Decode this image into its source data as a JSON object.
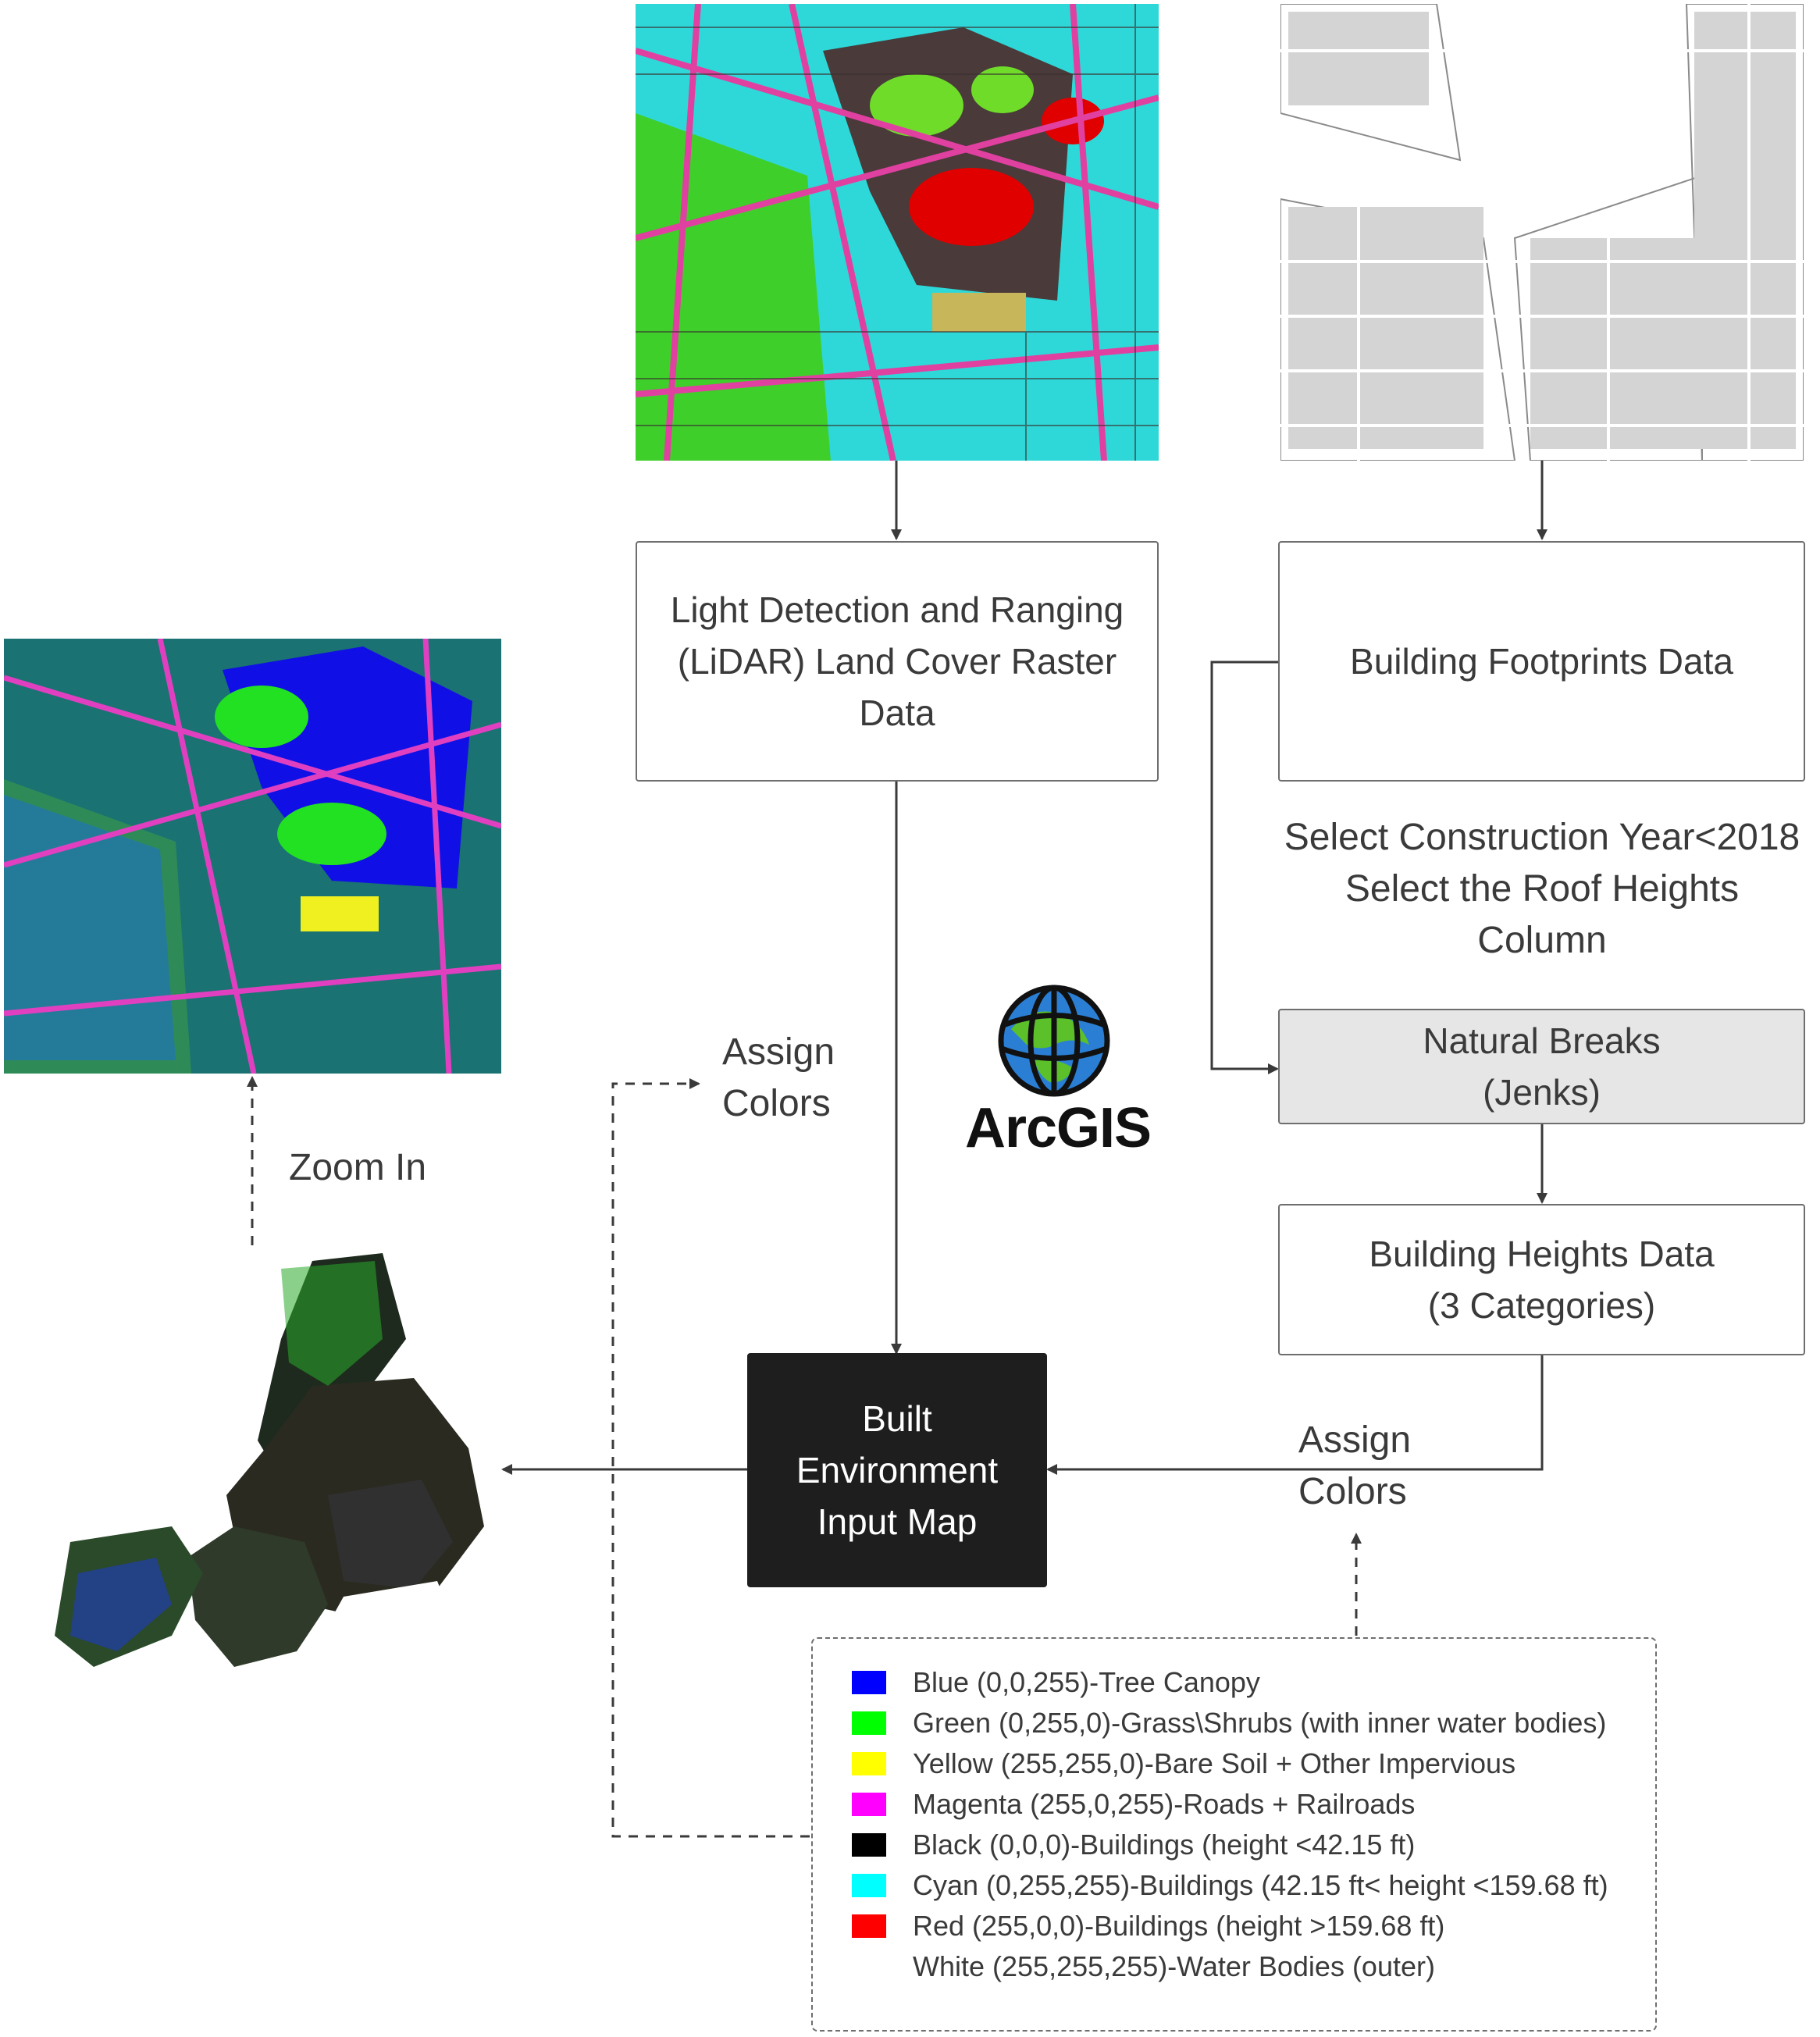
{
  "boxes": {
    "lidar": "Light Detection and Ranging (LiDAR) Land Cover Raster Data",
    "footprints": "Building Footprints Data",
    "jenks_line1": "Natural Breaks",
    "jenks_line2": "(Jenks)",
    "heights_line1": "Building Heights Data",
    "heights_line2": "(3 Categories)",
    "built_line1": "Built",
    "built_line2": "Environment",
    "built_line3": "Input Map"
  },
  "annotations": {
    "select_line1": "Select Construction Year<2018",
    "select_line2": "Select the Roof Heights",
    "select_line3": "Column",
    "assign_left_line1": "Assign",
    "assign_left_line2": "Colors",
    "assign_right_line1": "Assign",
    "assign_right_line2": "Colors",
    "zoom_in": "Zoom In"
  },
  "logo": {
    "text": "ArcGIS",
    "icon": "globe-icon"
  },
  "legend": [
    {
      "color": "#0000ff",
      "label": "Blue (0,0,255)-Tree Canopy"
    },
    {
      "color": "#00ff00",
      "label": "Green (0,255,0)-Grass\\Shrubs (with inner water bodies)"
    },
    {
      "color": "#ffff00",
      "label": "Yellow (255,255,0)-Bare Soil + Other Impervious"
    },
    {
      "color": "#ff00ff",
      "label": "Magenta (255,0,255)-Roads + Railroads"
    },
    {
      "color": "#000000",
      "label": "Black (0,0,0)-Buildings (height <42.15 ft)"
    },
    {
      "color": "#00ffff",
      "label": "Cyan (0,255,255)-Buildings (42.15 ft< height <159.68 ft)"
    },
    {
      "color": "#ff0000",
      "label": "Red (255,0,0)-Buildings (height >159.68 ft)"
    },
    {
      "color": "#ffffff",
      "label": "White (255,255,255)-Water Bodies (outer)"
    }
  ]
}
